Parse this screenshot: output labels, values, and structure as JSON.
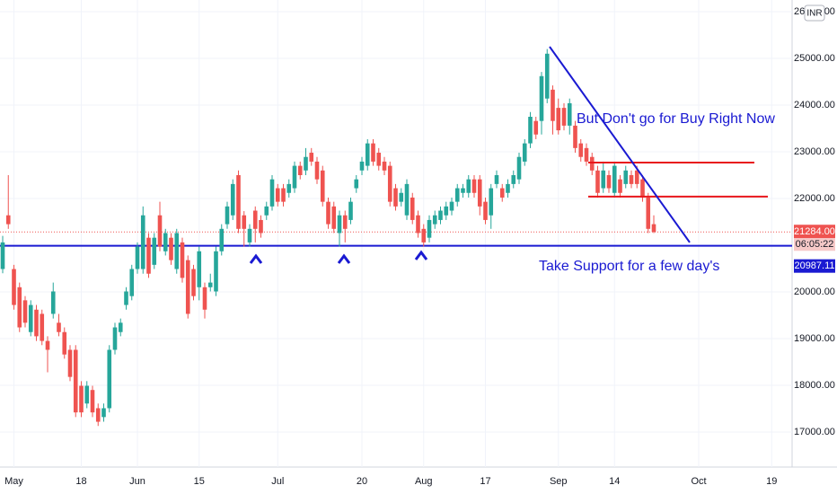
{
  "chart_data": {
    "type": "candlestick",
    "currency": "INR",
    "categories": [
      null,
      null,
      "May",
      null,
      null,
      null,
      null,
      null,
      null,
      null,
      null,
      null,
      null,
      null,
      "18",
      null,
      null,
      null,
      null,
      null,
      null,
      null,
      null,
      null,
      "Jun",
      null,
      null,
      null,
      null,
      null,
      null,
      null,
      null,
      null,
      null,
      "15",
      null,
      null,
      null,
      null,
      null,
      null,
      null,
      null,
      null,
      null,
      null,
      null,
      null,
      "Jul",
      null,
      null,
      null,
      null,
      null,
      null,
      null,
      null,
      null,
      null,
      null,
      null,
      null,
      null,
      "20",
      null,
      null,
      null,
      null,
      null,
      null,
      null,
      null,
      null,
      null,
      "Aug",
      null,
      null,
      null,
      null,
      null,
      null,
      null,
      null,
      null,
      null,
      "17",
      null,
      null,
      null,
      null,
      null,
      null,
      null,
      null,
      null,
      null,
      null,
      null,
      "Sep",
      null,
      null,
      null,
      null,
      null,
      null,
      null,
      null,
      null,
      "14",
      null,
      null,
      null,
      null,
      null,
      null,
      null,
      null,
      null,
      null,
      null,
      null,
      null,
      null,
      "Oct",
      null,
      null,
      null,
      null,
      null,
      null,
      null,
      null,
      null,
      null,
      null,
      null,
      "19"
    ],
    "open": [
      20490,
      21640,
      20490,
      20100,
      19820,
      19140,
      19620,
      19530,
      18950,
      19530,
      19340,
      19140,
      18760,
      18760,
      17990,
      17610,
      17900,
      17510,
      17320,
      17510,
      18760,
      19140,
      19720,
      19910,
      20490,
      20490,
      21160,
      20580,
      21640,
      20870,
      21160,
      20490,
      21060,
      20680,
      20490,
      20100,
      20100,
      20100,
      20010,
      20870,
      21450,
      21640,
      22500,
      21640,
      21060,
      21740,
      21540,
      21640,
      21830,
      22220,
      22220,
      22120,
      22220,
      22700,
      22600,
      22980,
      22790,
      22600,
      21930,
      21830,
      21260,
      21640,
      21540,
      22220,
      22600,
      22700,
      23180,
      22980,
      22790,
      22700,
      22220,
      21930,
      21640,
      22020,
      21640,
      21350,
      21160,
      21450,
      21540,
      21640,
      21740,
      21930,
      22120,
      22120,
      22410,
      22410,
      21930,
      21640,
      22310,
      22220,
      22120,
      22310,
      22410,
      22790,
      23180,
      23660,
      23660,
      24140,
      24330,
      23940,
      23940,
      23560,
      23560,
      23180,
      23080,
      22890,
      22600,
      22220,
      22500,
      22120,
      22410,
      22310,
      22500,
      22600,
      22410,
      22020,
      21450,
      null,
      null,
      null,
      null,
      null,
      null,
      null,
      null,
      null,
      null,
      null,
      null,
      null,
      null,
      null,
      null,
      null,
      null,
      null,
      null,
      null
    ],
    "high": [
      21200,
      22500,
      20580,
      20200,
      19910,
      19820,
      19720,
      19620,
      19050,
      20200,
      19530,
      19240,
      18860,
      18860,
      18090,
      18090,
      17990,
      17610,
      17610,
      18860,
      19340,
      19430,
      20100,
      20580,
      21060,
      21830,
      21260,
      21260,
      21930,
      21350,
      21260,
      21350,
      21160,
      20780,
      20580,
      20970,
      20200,
      20390,
      20970,
      21450,
      21930,
      22410,
      22600,
      21730,
      21450,
      21830,
      21640,
      21930,
      22500,
      22310,
      22310,
      22410,
      22790,
      22790,
      23080,
      23080,
      22890,
      22700,
      22020,
      21930,
      21740,
      21740,
      22020,
      22500,
      22890,
      23270,
      23270,
      23080,
      22890,
      22790,
      22310,
      22220,
      22410,
      22120,
      21740,
      21450,
      21640,
      21740,
      21830,
      21930,
      22020,
      22310,
      22310,
      22500,
      22500,
      22500,
      22020,
      22310,
      22600,
      22310,
      22410,
      22600,
      22980,
      23270,
      23850,
      23750,
      24710,
      25200,
      24420,
      24140,
      24040,
      24140,
      23660,
      23270,
      23180,
      22980,
      22700,
      22790,
      22600,
      22790,
      22500,
      22700,
      22600,
      22700,
      22500,
      22120,
      21640,
      null,
      null,
      null,
      null,
      null,
      null,
      null,
      null,
      null,
      null,
      null,
      null,
      null,
      null,
      null,
      null,
      null,
      null,
      null,
      null,
      null
    ],
    "low": [
      20400,
      21350,
      19620,
      19140,
      19240,
      19050,
      18950,
      18860,
      18280,
      19430,
      19050,
      18570,
      18090,
      17320,
      17320,
      17510,
      17320,
      17130,
      17220,
      17420,
      18660,
      19050,
      19620,
      19820,
      20390,
      20390,
      20300,
      20490,
      20870,
      20780,
      20580,
      20390,
      20200,
      19430,
      19820,
      19820,
      19430,
      20010,
      19910,
      20780,
      21350,
      21540,
      21260,
      20970,
      20970,
      21060,
      21160,
      21540,
      21740,
      21830,
      21830,
      22020,
      22120,
      22410,
      22500,
      22700,
      22310,
      21830,
      21350,
      21260,
      20970,
      21060,
      21450,
      22120,
      22500,
      22600,
      22700,
      22600,
      22500,
      21830,
      21740,
      21830,
      21540,
      21450,
      21160,
      20970,
      21060,
      21350,
      21450,
      21540,
      21640,
      21830,
      22020,
      22020,
      22020,
      21640,
      21450,
      21350,
      22220,
      21930,
      22020,
      22220,
      22310,
      22700,
      23080,
      23270,
      23370,
      24040,
      23370,
      23370,
      23460,
      23370,
      22980,
      22790,
      22700,
      22500,
      22020,
      22120,
      22120,
      22020,
      22020,
      22220,
      22220,
      22220,
      21930,
      21260,
      21260,
      null,
      null,
      null,
      null,
      null,
      null,
      null,
      null,
      null,
      null,
      null,
      null,
      null,
      null,
      null,
      null,
      null,
      null,
      null,
      null,
      null
    ],
    "close": [
      21060,
      21450,
      19720,
      19240,
      19340,
      19720,
      19050,
      18950,
      18760,
      20010,
      19140,
      18660,
      18180,
      17420,
      17420,
      17990,
      17420,
      17220,
      17510,
      18760,
      19240,
      19340,
      20010,
      20490,
      20970,
      21640,
      20390,
      21160,
      20970,
      21260,
      20680,
      21260,
      20300,
      19530,
      19910,
      20870,
      19620,
      20200,
      20870,
      21350,
      21830,
      22310,
      21350,
      21350,
      21350,
      21350,
      21260,
      21830,
      22410,
      21930,
      21930,
      22310,
      22700,
      22500,
      22890,
      22790,
      22410,
      21930,
      21450,
      21350,
      21640,
      21350,
      21930,
      22410,
      22790,
      23180,
      22790,
      22700,
      22600,
      21930,
      21830,
      22120,
      22310,
      21540,
      21260,
      21060,
      21540,
      21640,
      21740,
      21830,
      21930,
      22220,
      22220,
      22410,
      22120,
      21830,
      21540,
      22220,
      22500,
      22020,
      22310,
      22500,
      22890,
      23180,
      23750,
      23370,
      24620,
      25100,
      23660,
      23460,
      23560,
      24040,
      23080,
      22890,
      22790,
      22600,
      22120,
      22600,
      22220,
      22700,
      22120,
      22600,
      22310,
      22310,
      22020,
      21350,
      21284,
      null,
      null,
      null,
      null,
      null,
      null,
      null,
      null,
      null,
      null,
      null,
      null,
      null,
      null,
      null,
      null,
      null,
      null,
      null,
      null,
      null
    ],
    "up_color": "#26a69a",
    "down_color": "#ef5350",
    "ylim": [
      16250,
      26250
    ],
    "yticks": [
      {
        "value": 17000,
        "label": "17000.00"
      },
      {
        "value": 18000,
        "label": "18000.00"
      },
      {
        "value": 19000,
        "label": "19000.00"
      },
      {
        "value": 20000,
        "label": "20000.00"
      },
      {
        "value": 21000,
        "label": "21000.00"
      },
      {
        "value": 22000,
        "label": "22000.00"
      },
      {
        "value": 23000,
        "label": "23000.00"
      },
      {
        "value": 24000,
        "label": "24000.00"
      },
      {
        "value": 25000,
        "label": "25000.00"
      },
      {
        "value": 26000,
        "label": "26000.00"
      }
    ],
    "grid": true,
    "last_price": {
      "value": 21284,
      "label": "21284.00"
    },
    "countdown": "06:05:22",
    "support_line": {
      "value": 20987.11,
      "label": "20987.11",
      "color": "#1a1ad2"
    },
    "resistance_lines": [
      22770,
      22040
    ],
    "resistance_color": "#e8161b",
    "trend_line": {
      "start": 25250,
      "end": 21060,
      "color": "#1a1ad2"
    },
    "annotations": [
      "But Don't go for Buy Right Now",
      "Take Support for a few day's"
    ],
    "annotation_color": "#1a1ad2"
  }
}
